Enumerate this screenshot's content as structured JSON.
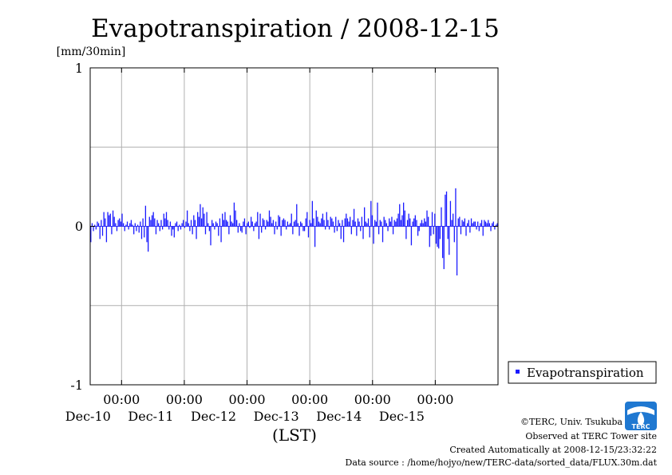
{
  "chart_data": {
    "type": "bar",
    "title": "Evapotranspiration / 2008-12-15",
    "unit_label": "[mm/30min]",
    "xlabel": "(LST)",
    "ylim": [
      -1,
      1
    ],
    "y_ticks": [
      "1",
      "0",
      "-1"
    ],
    "grid": true,
    "legend_placement": "right",
    "series": [
      {
        "name": "Evapotranspiration",
        "color": "#1a1aff",
        "interval": "30min",
        "values": [
          -0.1,
          0.02,
          -0.03,
          0.01,
          -0.02,
          0.03,
          0.02,
          -0.08,
          0.04,
          -0.06,
          0.09,
          0.05,
          -0.1,
          0.09,
          0.07,
          0.08,
          -0.05,
          0.1,
          0.06,
          0.02,
          -0.03,
          0.04,
          0.05,
          0.03,
          0.08,
          0.02,
          -0.03,
          0.01,
          0.03,
          -0.02,
          0.02,
          0.04,
          0.01,
          -0.05,
          0.02,
          -0.03,
          0.01,
          -0.04,
          0.03,
          -0.08,
          0.05,
          -0.07,
          0.13,
          -0.1,
          -0.16,
          0.06,
          0.04,
          0.07,
          0.09,
          0.05,
          -0.05,
          0.04,
          0.02,
          -0.03,
          0.04,
          -0.02,
          0.08,
          0.05,
          0.09,
          0.04,
          -0.02,
          0.03,
          -0.06,
          -0.02,
          -0.07,
          0.02,
          0.03,
          -0.03,
          0.01,
          -0.02,
          0.02,
          0.04,
          -0.01,
          0.03,
          0.1,
          0.02,
          -0.03,
          0.04,
          -0.05,
          0.07,
          0.04,
          -0.08,
          0.09,
          0.06,
          0.14,
          0.05,
          0.12,
          0.08,
          -0.05,
          0.09,
          0.02,
          -0.03,
          -0.12,
          0.04,
          0.02,
          -0.02,
          0.03,
          0.02,
          -0.06,
          0.05,
          -0.1,
          0.08,
          0.04,
          0.09,
          0.04,
          0.03,
          -0.05,
          0.07,
          0.03,
          0.02,
          0.15,
          0.1,
          0.04,
          -0.04,
          0.02,
          -0.03,
          -0.04,
          0.03,
          0.05,
          -0.05,
          0.02,
          0.03,
          -0.01,
          0.06,
          0.03,
          -0.03,
          0.02,
          0.03,
          0.09,
          -0.08,
          0.08,
          -0.04,
          0.05,
          0.04,
          -0.02,
          0.04,
          0.03,
          0.1,
          0.06,
          0.02,
          0.04,
          -0.05,
          0.03,
          -0.02,
          0.07,
          0.06,
          -0.06,
          0.04,
          0.05,
          0.04,
          -0.02,
          0.03,
          0.01,
          0.02,
          0.08,
          -0.05,
          0.03,
          0.04,
          0.14,
          0.02,
          -0.06,
          0.03,
          0.02,
          -0.03,
          -0.03,
          0.05,
          0.09,
          -0.07,
          0.04,
          0.02,
          0.16,
          0.05,
          -0.13,
          0.1,
          0.06,
          0.03,
          0.02,
          0.05,
          0.08,
          0.04,
          -0.02,
          0.09,
          0.04,
          -0.02,
          0.06,
          0.05,
          0.03,
          -0.04,
          0.06,
          -0.03,
          0.04,
          0.02,
          -0.08,
          0.04,
          -0.1,
          0.05,
          0.08,
          0.05,
          0.03,
          0.06,
          -0.05,
          0.04,
          0.11,
          0.03,
          -0.06,
          0.05,
          0.03,
          -0.03,
          0.06,
          -0.08,
          0.12,
          0.03,
          0.02,
          0.05,
          -0.07,
          0.16,
          0.07,
          -0.11,
          0.04,
          0.03,
          0.15,
          -0.05,
          0.04,
          0.03,
          -0.1,
          0.06,
          0.04,
          0.02,
          -0.03,
          0.05,
          0.03,
          0.06,
          -0.05,
          0.04,
          0.03,
          0.05,
          0.08,
          0.14,
          0.04,
          0.07,
          0.15,
          0.1,
          -0.08,
          0.04,
          0.08,
          0.05,
          -0.12,
          0.03,
          0.05,
          0.07,
          0.04,
          -0.06,
          -0.03,
          0.02,
          0.04,
          0.02,
          0.05,
          0.03,
          0.1,
          0.06,
          -0.13,
          -0.06,
          0.09,
          -0.05,
          0.08,
          -0.11,
          -0.13,
          -0.14,
          -0.08,
          0.12,
          -0.2,
          -0.27,
          0.2,
          0.22,
          -0.08,
          -0.18,
          0.16,
          0.04,
          0.08,
          -0.1,
          0.24,
          -0.31,
          0.05,
          0.06,
          -0.05,
          0.04,
          0.03,
          0.05,
          -0.06,
          0.02,
          0.04,
          -0.04,
          0.05,
          0.02,
          0.03,
          0.03,
          -0.02,
          0.03,
          -0.03,
          0.02,
          0.04,
          -0.06,
          0.04,
          0.03,
          0.02,
          0.04,
          0.02,
          -0.03,
          0.02,
          0.03,
          -0.02,
          0.01,
          0.02
        ]
      }
    ],
    "x_axis": {
      "start": "2008-12-09 12:00",
      "end": "2008-12-15 24:00",
      "labels": [
        {
          "time": "00:00",
          "date": "Dec-10"
        },
        {
          "time": "00:00",
          "date": "Dec-11"
        },
        {
          "time": "00:00",
          "date": "Dec-12"
        },
        {
          "time": "00:00",
          "date": "Dec-13"
        },
        {
          "time": "00:00",
          "date": "Dec-14"
        },
        {
          "time": "00:00",
          "date": "Dec-15"
        }
      ]
    }
  },
  "credits": {
    "copyright": "©TERC, Univ. Tsukuba",
    "observed": "Observed at TERC Tower site",
    "created": "Created Automatically at 2008-12-15/23:32:22",
    "source": "Data source : /home/hojyo/new/TERC-data/sorted_data/FLUX.30m.dat"
  },
  "logo": {
    "text": "TERC",
    "icon": "terc-logo-icon",
    "color": "#1f78d1"
  }
}
